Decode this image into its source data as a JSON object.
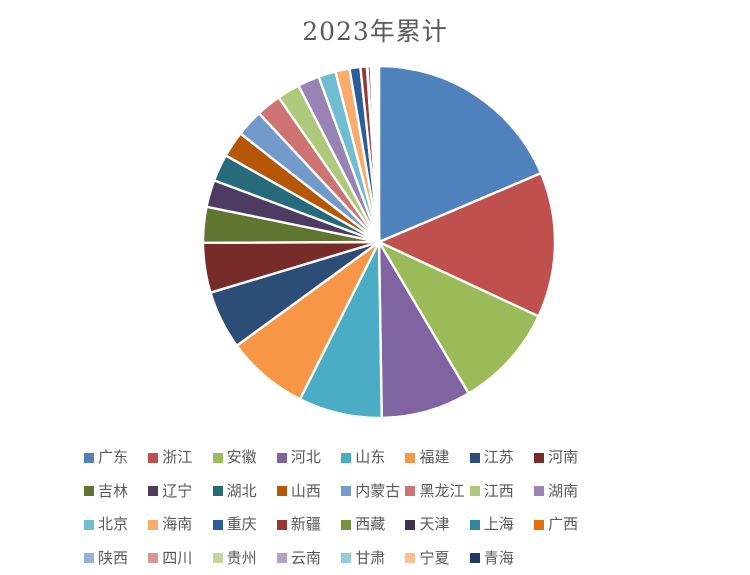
{
  "chart_data": {
    "type": "pie",
    "title": "2023年累计",
    "title_color": "#595959",
    "background": "#FFFFFF",
    "legend_position": "bottom",
    "legend_text_color": "#595959",
    "legend_rows": [
      8,
      8,
      8,
      7
    ],
    "start_angle_deg": 0,
    "direction": "clockwise",
    "values_unit": "percent-of-total (estimated from slice angles)",
    "series": [
      {
        "label": "广东",
        "value": 18.7,
        "color": "#4F81BD"
      },
      {
        "label": "浙江",
        "value": 13.4,
        "color": "#C0504D"
      },
      {
        "label": "安徽",
        "value": 9.6,
        "color": "#9BBB59"
      },
      {
        "label": "河北",
        "value": 8.3,
        "color": "#8064A2"
      },
      {
        "label": "山东",
        "value": 7.7,
        "color": "#4BACC6"
      },
      {
        "label": "福建",
        "value": 7.6,
        "color": "#F79646"
      },
      {
        "label": "江苏",
        "value": 5.4,
        "color": "#2C4D75"
      },
      {
        "label": "河南",
        "value": 4.6,
        "color": "#772C2A"
      },
      {
        "label": "吉林",
        "value": 3.3,
        "color": "#5F7530"
      },
      {
        "label": "辽宁",
        "value": 2.5,
        "color": "#4D3B62"
      },
      {
        "label": "湖北",
        "value": 2.5,
        "color": "#276A7C"
      },
      {
        "label": "山西",
        "value": 2.4,
        "color": "#B65708"
      },
      {
        "label": "内蒙古",
        "value": 2.5,
        "color": "#729ACA"
      },
      {
        "label": "黑龙江",
        "value": 2.3,
        "color": "#CD7371"
      },
      {
        "label": "江西",
        "value": 2.1,
        "color": "#AFC97A"
      },
      {
        "label": "湖南",
        "value": 2.0,
        "color": "#9983B5"
      },
      {
        "label": "北京",
        "value": 1.6,
        "color": "#6FBDD1"
      },
      {
        "label": "海南",
        "value": 1.3,
        "color": "#F9AB6B"
      },
      {
        "label": "重庆",
        "value": 1.0,
        "color": "#2C5D9B"
      },
      {
        "label": "新疆",
        "value": 0.6,
        "color": "#953735"
      },
      {
        "label": "西藏",
        "value": 0.05,
        "color": "#77933C"
      },
      {
        "label": "天津",
        "value": 0.3,
        "color": "#403152"
      },
      {
        "label": "上海",
        "value": 0.15,
        "color": "#31859C"
      },
      {
        "label": "广西",
        "value": 0.1,
        "color": "#E46C0A"
      },
      {
        "label": "陕西",
        "value": 0.1,
        "color": "#95B3D7"
      },
      {
        "label": "四川",
        "value": 0.1,
        "color": "#D99694"
      },
      {
        "label": "贵州",
        "value": 0.05,
        "color": "#C3D69B"
      },
      {
        "label": "云南",
        "value": 0.05,
        "color": "#B3A2C7"
      },
      {
        "label": "甘肃",
        "value": 0.05,
        "color": "#93CDDD"
      },
      {
        "label": "宁夏",
        "value": 0.05,
        "color": "#FAC090"
      },
      {
        "label": "青海",
        "value": 0.1,
        "color": "#1F3864"
      }
    ],
    "geometry": {
      "cx": 379,
      "cy": 242,
      "r": 176
    }
  }
}
